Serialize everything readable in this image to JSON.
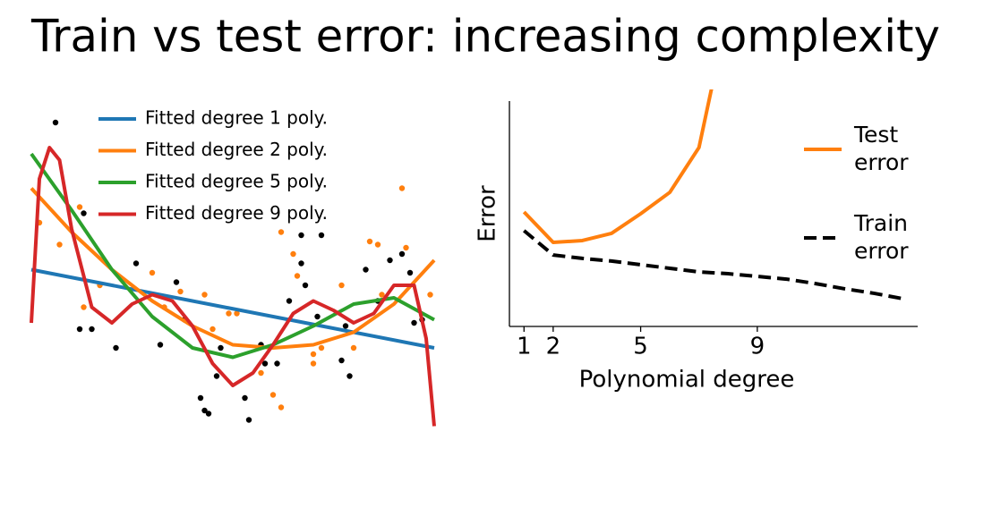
{
  "title": "Train vs test error: increasing complexity",
  "chart_data": [
    {
      "type": "scatter",
      "xlim": [
        0,
        1
      ],
      "ylim": [
        0,
        1
      ],
      "series": [
        {
          "style": "points",
          "color": "#000000",
          "x": [
            0.06,
            0.13,
            0.12,
            0.15,
            0.21,
            0.26,
            0.32,
            0.36,
            0.38,
            0.42,
            0.43,
            0.44,
            0.46,
            0.47,
            0.53,
            0.54,
            0.57,
            0.58,
            0.61,
            0.64,
            0.67,
            0.67,
            0.72,
            0.68,
            0.71,
            0.77,
            0.79,
            0.78,
            0.83,
            0.86,
            0.89,
            0.92,
            0.94,
            0.95,
            0.97
          ],
          "values": [
            0.98,
            0.69,
            0.32,
            0.32,
            0.26,
            0.53,
            0.27,
            0.47,
            0.35,
            0.1,
            0.06,
            0.05,
            0.17,
            0.26,
            0.1,
            0.03,
            0.27,
            0.21,
            0.21,
            0.41,
            0.53,
            0.62,
            0.62,
            0.46,
            0.36,
            0.22,
            0.17,
            0.33,
            0.51,
            0.41,
            0.54,
            0.56,
            0.5,
            0.34,
            0.35
          ]
        },
        {
          "style": "points",
          "color": "#ff7f0e",
          "x": [
            0.02,
            0.07,
            0.12,
            0.13,
            0.17,
            0.3,
            0.33,
            0.37,
            0.43,
            0.45,
            0.49,
            0.51,
            0.57,
            0.6,
            0.62,
            0.62,
            0.65,
            0.66,
            0.7,
            0.7,
            0.72,
            0.77,
            0.8,
            0.84,
            0.86,
            0.87,
            0.92,
            0.93,
            0.99
          ],
          "values": [
            0.66,
            0.59,
            0.71,
            0.39,
            0.46,
            0.5,
            0.39,
            0.44,
            0.43,
            0.32,
            0.37,
            0.37,
            0.18,
            0.11,
            0.07,
            0.63,
            0.56,
            0.49,
            0.24,
            0.21,
            0.26,
            0.46,
            0.26,
            0.6,
            0.59,
            0.43,
            0.77,
            0.58,
            0.43
          ]
        },
        {
          "style": "line",
          "name": "Fitted degree 1 poly.",
          "color": "#1f77b4",
          "x": [
            0,
            1
          ],
          "values": [
            0.51,
            0.26
          ]
        },
        {
          "style": "line",
          "name": "Fitted degree 2 poly.",
          "color": "#ff7f0e",
          "x": [
            0,
            0.1,
            0.2,
            0.3,
            0.4,
            0.5,
            0.6,
            0.7,
            0.8,
            0.9,
            1
          ],
          "values": [
            0.77,
            0.63,
            0.51,
            0.41,
            0.33,
            0.27,
            0.26,
            0.27,
            0.31,
            0.4,
            0.54
          ]
        },
        {
          "style": "line",
          "name": "Fitted degree 5 poly.",
          "color": "#2ca02c",
          "x": [
            0,
            0.1,
            0.2,
            0.3,
            0.4,
            0.5,
            0.6,
            0.7,
            0.8,
            0.9,
            1
          ],
          "values": [
            0.88,
            0.7,
            0.51,
            0.36,
            0.26,
            0.23,
            0.27,
            0.33,
            0.4,
            0.42,
            0.35
          ]
        },
        {
          "style": "line",
          "name": "Fitted degree 9 poly.",
          "color": "#d62728",
          "x": [
            0,
            0.02,
            0.045,
            0.07,
            0.1,
            0.15,
            0.2,
            0.25,
            0.3,
            0.35,
            0.4,
            0.45,
            0.5,
            0.55,
            0.6,
            0.65,
            0.7,
            0.75,
            0.8,
            0.85,
            0.9,
            0.95,
            0.98,
            1
          ],
          "values": [
            0.34,
            0.8,
            0.9,
            0.86,
            0.64,
            0.39,
            0.34,
            0.4,
            0.43,
            0.41,
            0.33,
            0.21,
            0.14,
            0.18,
            0.27,
            0.37,
            0.41,
            0.38,
            0.34,
            0.37,
            0.46,
            0.46,
            0.29,
            0.01
          ]
        }
      ]
    },
    {
      "type": "line",
      "x_label": "Polynomial degree",
      "y_label": "Error",
      "xlim": [
        0.5,
        14.5
      ],
      "ylim": [
        0,
        10
      ],
      "xticks": [
        1,
        2,
        5,
        9
      ],
      "series": [
        {
          "name": "Test error",
          "color": "#ff7f0e",
          "dashed": false,
          "x": [
            1,
            2,
            3,
            4,
            5,
            6,
            7,
            8
          ],
          "values": [
            5.08,
            3.73,
            3.81,
            4.13,
            5.0,
            5.95,
            7.94,
            14
          ]
        },
        {
          "name": "Train error",
          "color": "#000000",
          "dashed": true,
          "x": [
            1,
            2,
            3,
            4,
            5,
            6,
            7,
            8,
            9,
            10,
            11,
            12,
            13,
            14
          ],
          "values": [
            4.25,
            3.17,
            3.02,
            2.9,
            2.74,
            2.58,
            2.42,
            2.34,
            2.22,
            2.1,
            1.9,
            1.67,
            1.47,
            1.23
          ]
        }
      ]
    }
  ]
}
